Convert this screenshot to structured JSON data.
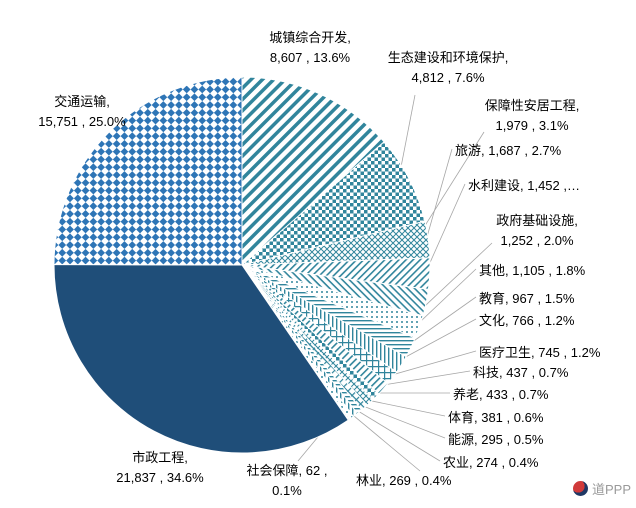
{
  "watermark": {
    "text": "道PPP"
  },
  "chart_data": {
    "type": "pie",
    "title": "",
    "total": 63111,
    "legend_position": "none",
    "colors": {
      "dark_blue": "#1F4E79",
      "medium_blue": "#2E75B6",
      "teal": "#31859C"
    },
    "slices": [
      {
        "name": "城镇综合开发",
        "value": 8607,
        "value_text": "8,607",
        "pct": 13.6,
        "label_lines": [
          "城镇综合开发,",
          "8,607 , 13.6%"
        ]
      },
      {
        "name": "生态建设和环境保护",
        "value": 4812,
        "value_text": "4,812",
        "pct": 7.6,
        "label_lines": [
          "生态建设和环境保护,",
          "4,812 , 7.6%"
        ]
      },
      {
        "name": "保障性安居工程",
        "value": 1979,
        "value_text": "1,979",
        "pct": 3.1,
        "label_lines": [
          "保障性安居工程,",
          "1,979 , 3.1%"
        ]
      },
      {
        "name": "旅游",
        "value": 1687,
        "value_text": "1,687",
        "pct": 2.7,
        "label_lines": [
          "旅游, 1,687 , 2.7%"
        ]
      },
      {
        "name": "水利建设",
        "value": 1452,
        "value_text": "1,452",
        "pct": null,
        "label_lines": [
          "水利建设, 1,452 ,…"
        ]
      },
      {
        "name": "政府基础设施",
        "value": 1252,
        "value_text": "1,252",
        "pct": 2.0,
        "label_lines": [
          "政府基础设施,",
          "1,252 , 2.0%"
        ]
      },
      {
        "name": "其他",
        "value": 1105,
        "value_text": "1,105",
        "pct": 1.8,
        "label_lines": [
          "其他, 1,105 , 1.8%"
        ]
      },
      {
        "name": "教育",
        "value": 967,
        "value_text": "967",
        "pct": 1.5,
        "label_lines": [
          "教育, 967 , 1.5%"
        ]
      },
      {
        "name": "文化",
        "value": 766,
        "value_text": "766",
        "pct": 1.2,
        "label_lines": [
          "文化, 766 , 1.2%"
        ]
      },
      {
        "name": "医疗卫生",
        "value": 745,
        "value_text": "745",
        "pct": 1.2,
        "label_lines": [
          "医疗卫生, 745 , 1.2%"
        ]
      },
      {
        "name": "科技",
        "value": 437,
        "value_text": "437",
        "pct": 0.7,
        "label_lines": [
          "科技, 437 , 0.7%"
        ]
      },
      {
        "name": "养老",
        "value": 433,
        "value_text": "433",
        "pct": 0.7,
        "label_lines": [
          "养老, 433 , 0.7%"
        ]
      },
      {
        "name": "体育",
        "value": 381,
        "value_text": "381",
        "pct": 0.6,
        "label_lines": [
          "体育, 381 , 0.6%"
        ]
      },
      {
        "name": "能源",
        "value": 295,
        "value_text": "295",
        "pct": 0.5,
        "label_lines": [
          "能源, 295 , 0.5%"
        ]
      },
      {
        "name": "农业",
        "value": 274,
        "value_text": "274",
        "pct": 0.4,
        "label_lines": [
          "农业, 274 , 0.4%"
        ]
      },
      {
        "name": "林业",
        "value": 269,
        "value_text": "269",
        "pct": 0.4,
        "label_lines": [
          "林业, 269 , 0.4%"
        ]
      },
      {
        "name": "社会保障",
        "value": 62,
        "value_text": "62",
        "pct": 0.1,
        "label_lines": [
          "社会保障, 62 ,",
          "0.1%"
        ]
      },
      {
        "name": "市政工程",
        "value": 21837,
        "value_text": "21,837",
        "pct": 34.6,
        "label_lines": [
          "市政工程,",
          "21,837 , 34.6%"
        ]
      },
      {
        "name": "交通运输",
        "value": 15751,
        "value_text": "15,751",
        "pct": 25.0,
        "label_lines": [
          "交通运输,",
          "15,751 , 25.0%"
        ]
      }
    ]
  }
}
